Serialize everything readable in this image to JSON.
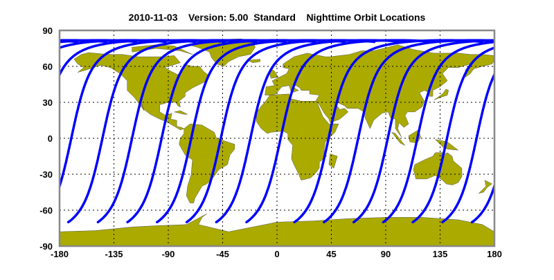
{
  "title": "2010-11-03    Version: 5.00  Standard    Nighttime Orbit Locations",
  "chart_data": {
    "type": "map",
    "projection": "equirectangular",
    "title": "2010-11-03    Version: 5.00  Standard    Nighttime Orbit Locations",
    "xlim": [
      -180,
      180
    ],
    "ylim": [
      -90,
      90
    ],
    "x_ticks": [
      "-180",
      "-135",
      "-90",
      "-45",
      "0",
      "45",
      "90",
      "135",
      "180"
    ],
    "y_ticks": [
      "90",
      "60",
      "30",
      "0",
      "-30",
      "-60",
      "-90"
    ],
    "grid": "dotted",
    "orbit_equator_crossings_lon": [
      -144.5,
      -120,
      -95.5,
      -71,
      -46.5,
      -22,
      3,
      42.7,
      67.2,
      91.7,
      116.2,
      140.7,
      165.2,
      189.7
    ],
    "orbit_lat_range": [
      -70,
      81.8
    ],
    "colors": {
      "land": "#aaaa00",
      "orbit": "#0000ff",
      "frame": "#888888",
      "grid": "#000000"
    }
  }
}
